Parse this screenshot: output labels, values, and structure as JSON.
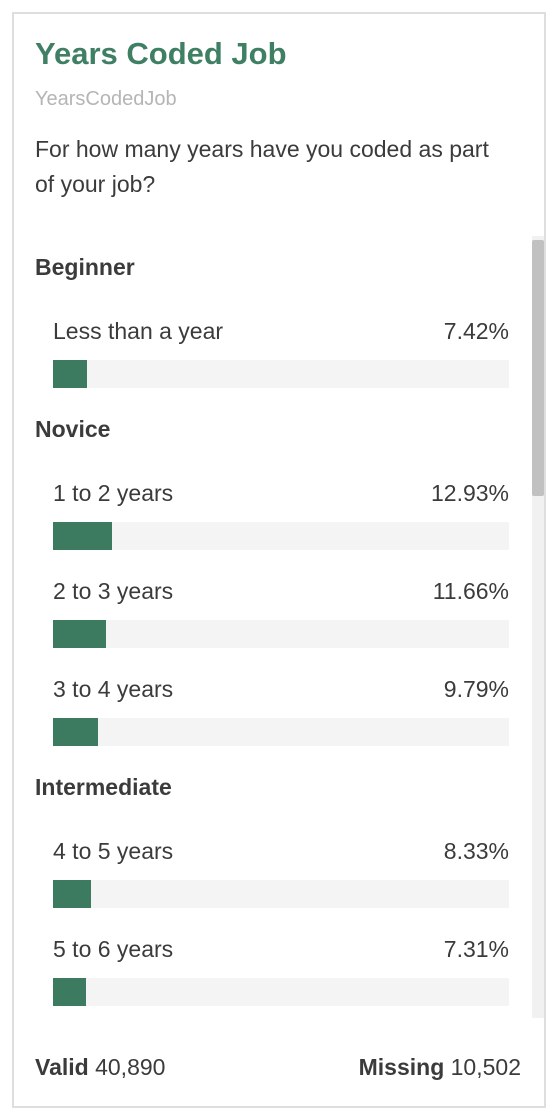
{
  "card": {
    "title": "Years Coded Job",
    "subtitle": "YearsCodedJob",
    "question": "For how many years have you coded as part of your job?"
  },
  "groups": [
    {
      "title": "Beginner",
      "items": [
        {
          "label": "Less than a year",
          "pct_text": "7.42%",
          "value": 7.42
        }
      ]
    },
    {
      "title": "Novice",
      "items": [
        {
          "label": "1 to 2 years",
          "pct_text": "12.93%",
          "value": 12.93
        },
        {
          "label": "2 to 3 years",
          "pct_text": "11.66%",
          "value": 11.66
        },
        {
          "label": "3 to 4 years",
          "pct_text": "9.79%",
          "value": 9.79
        }
      ]
    },
    {
      "title": "Intermediate",
      "items": [
        {
          "label": "4 to 5 years",
          "pct_text": "8.33%",
          "value": 8.33
        },
        {
          "label": "5 to 6 years",
          "pct_text": "7.31%",
          "value": 7.31
        }
      ]
    }
  ],
  "footer": {
    "valid_label": "Valid",
    "valid_value": "40,890",
    "missing_label": "Missing",
    "missing_value": "10,502"
  },
  "colors": {
    "title": "#3f7f64",
    "bar": "#3d7b61",
    "track": "#f4f4f4"
  }
}
